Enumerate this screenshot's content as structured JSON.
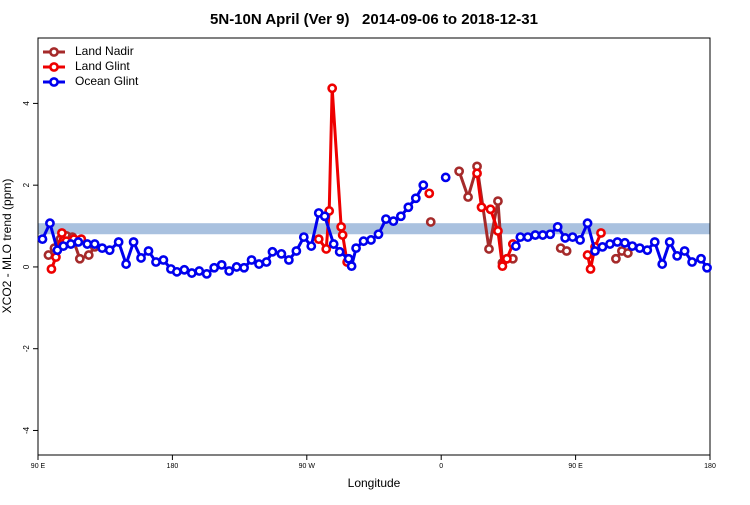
{
  "chart_data": {
    "type": "line",
    "title": "5N-10N April (Ver 9)   2014-09-06 to 2018-12-31",
    "x_label": "Longitude",
    "y_label": "XCO2 - MLO trend (ppm)",
    "xlim": [
      90,
      540
    ],
    "xticks": [
      {
        "value": 90,
        "label": "90 E"
      },
      {
        "value": 180,
        "label": "180"
      },
      {
        "value": 270,
        "label": "90 W"
      },
      {
        "value": 360,
        "label": "0"
      },
      {
        "value": 450,
        "label": "90 E"
      },
      {
        "value": 540,
        "label": "180"
      }
    ],
    "ylim": [
      -4.6,
      5.6
    ],
    "yticks": [
      -4,
      -2,
      0,
      2,
      4
    ],
    "reference_band": {
      "range": [
        0.8,
        1.07
      ],
      "color": "#a9c1df"
    },
    "legend": "top-left",
    "series": [
      {
        "name": "Land Nadir",
        "color": "#a52a2a",
        "x": [
          97,
          101,
          105,
          109,
          113,
          118,
          124,
          128,
          200,
          353,
          360,
          372,
          378,
          384,
          392,
          398,
          401,
          408,
          420,
          440,
          444,
          460,
          477,
          481,
          485
        ],
        "values": [
          0.29,
          0.46,
          0.68,
          0.76,
          0.73,
          0.2,
          0.29,
          0.49,
          null,
          1.1,
          null,
          2.34,
          1.71,
          2.46,
          0.44,
          1.61,
          0.1,
          0.2,
          null,
          0.46,
          0.39,
          null,
          0.2,
          0.39,
          0.34
        ]
      },
      {
        "name": "Land Glint",
        "color": "#ee0000",
        "x": [
          99,
          102,
          106,
          109,
          114,
          119,
          200,
          278,
          283,
          285,
          287,
          293,
          294,
          297,
          320,
          352,
          370,
          384,
          387,
          393,
          398,
          401,
          404,
          408,
          430,
          458,
          460,
          463,
          467
        ],
        "values": [
          -0.05,
          0.24,
          0.83,
          0.63,
          0.68,
          0.68,
          null,
          0.68,
          0.44,
          1.37,
          4.37,
          0.98,
          0.78,
          0.12,
          null,
          1.8,
          null,
          2.29,
          1.46,
          1.41,
          0.88,
          0.02,
          0.2,
          0.56,
          null,
          0.29,
          -0.05,
          0.49,
          0.83
        ]
      },
      {
        "name": "Ocean Glint",
        "color": "#0000ee",
        "x": [
          93,
          98,
          103,
          107,
          112,
          117,
          123,
          128,
          133,
          138,
          144,
          149,
          154,
          159,
          164,
          169,
          174,
          179,
          183,
          188,
          193,
          198,
          203,
          208,
          213,
          218,
          223,
          228,
          233,
          238,
          243,
          247,
          253,
          258,
          263,
          268,
          273,
          278,
          282,
          288,
          292,
          298,
          300,
          303,
          308,
          313,
          318,
          323,
          328,
          333,
          338,
          343,
          348,
          352,
          363,
          400,
          410,
          413,
          418,
          423,
          428,
          433,
          438,
          443,
          448,
          453,
          458,
          463,
          468,
          473,
          478,
          483,
          488,
          493,
          498,
          503,
          508,
          513,
          518,
          523,
          528,
          534,
          538
        ],
        "values": [
          0.68,
          1.07,
          0.41,
          0.51,
          0.56,
          0.61,
          0.56,
          0.56,
          0.46,
          0.41,
          0.61,
          0.07,
          0.61,
          0.22,
          0.39,
          0.12,
          0.17,
          -0.05,
          -0.12,
          -0.07,
          -0.15,
          -0.1,
          -0.17,
          -0.02,
          0.05,
          -0.1,
          0,
          -0.02,
          0.17,
          0.07,
          0.12,
          0.37,
          0.32,
          0.17,
          0.39,
          0.73,
          0.51,
          1.32,
          1.24,
          0.56,
          0.37,
          0.2,
          0.02,
          0.46,
          0.63,
          0.66,
          0.8,
          1.17,
          1.12,
          1.24,
          1.46,
          1.68,
          2.0,
          null,
          2.19,
          null,
          0.51,
          0.73,
          0.73,
          0.78,
          0.78,
          0.8,
          0.98,
          0.71,
          0.73,
          0.66,
          1.07,
          0.39,
          0.49,
          0.56,
          0.61,
          0.59,
          0.51,
          0.46,
          0.41,
          0.61,
          0.07,
          0.61,
          0.27,
          0.39,
          0.12,
          0.2,
          -0.02
        ]
      }
    ]
  }
}
